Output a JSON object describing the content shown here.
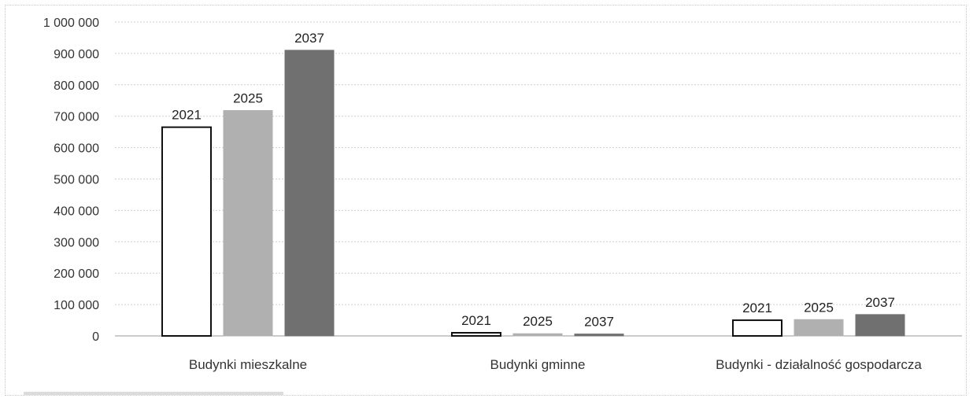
{
  "chart_data": {
    "type": "bar",
    "title": "",
    "xlabel": "",
    "ylabel": "",
    "ylim": [
      0,
      1000000
    ],
    "yticks": [
      0,
      100000,
      200000,
      300000,
      400000,
      500000,
      600000,
      700000,
      800000,
      900000,
      1000000
    ],
    "ytick_labels": [
      "0",
      "100 000",
      "200 000",
      "300 000",
      "400 000",
      "500 000",
      "600 000",
      "700 000",
      "800 000",
      "900 000",
      "1 000 000"
    ],
    "grid": true,
    "legend": "none",
    "categories": [
      "Budynki mieszkalne",
      "Budynki gminne",
      "Budynki - działalność gospodarcza"
    ],
    "series": [
      {
        "label": "2021",
        "values": [
          665000,
          10000,
          50000
        ],
        "fill": "#ffffff",
        "stroke": "#111111"
      },
      {
        "label": "2025",
        "values": [
          718000,
          7000,
          52000
        ],
        "fill": "#b0b0b0",
        "stroke": "#b0b0b0"
      },
      {
        "label": "2037",
        "values": [
          910000,
          6000,
          68000
        ],
        "fill": "#707070",
        "stroke": "#707070"
      }
    ]
  }
}
